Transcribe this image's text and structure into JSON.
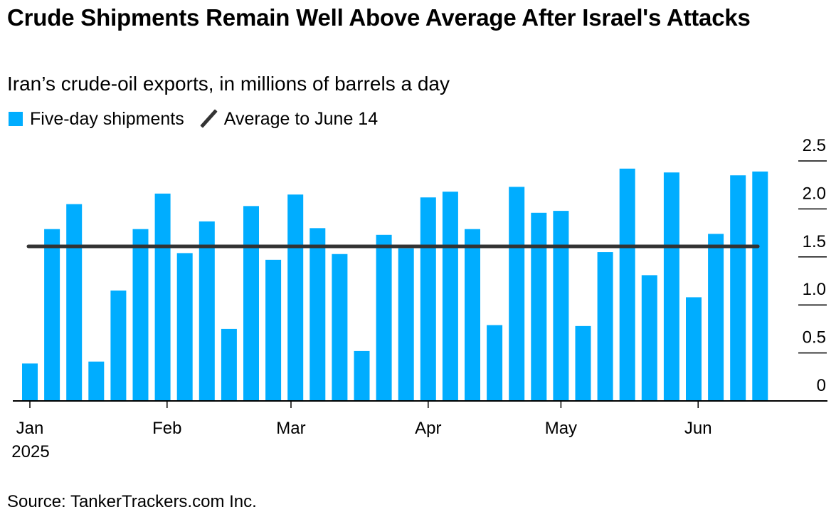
{
  "header": {
    "title": "Crude Shipments Remain Well Above Average After Israel's Attacks",
    "subtitle": "Iran’s crude-oil exports, in millions of barrels a day"
  },
  "legend": {
    "bars_label": "Five-day shipments",
    "line_label": "Average to June 14"
  },
  "footer": {
    "source": "Source: TankerTrackers.com Inc."
  },
  "colors": {
    "bars": "#00adff",
    "average_line": "#333333",
    "axis": "#000000"
  },
  "chart_data": {
    "type": "bar",
    "title": "Crude Shipments Remain Well Above Average After Israel's Attacks",
    "subtitle": "Iran’s crude-oil exports, in millions of barrels a day",
    "xlabel": "",
    "ylabel": "Millions of barrels a day",
    "ylim": [
      0,
      2.5
    ],
    "yticks": [
      0,
      0.5,
      1.0,
      1.5,
      2.0,
      2.5
    ],
    "ytick_labels": [
      "0",
      "0.5",
      "1.0",
      "1.5",
      "2.0",
      "2.5"
    ],
    "yaxis_side": "right",
    "grid": false,
    "legend_position": "top-left",
    "x_period_days": 5,
    "x_start": "2025-01-01",
    "x_end": "2025-06-30",
    "xticks": [
      {
        "date": "2025-01-01",
        "label": "Jan",
        "sublabel": "2025"
      },
      {
        "date": "2025-02-01",
        "label": "Feb",
        "sublabel": ""
      },
      {
        "date": "2025-03-01",
        "label": "Mar",
        "sublabel": ""
      },
      {
        "date": "2025-04-01",
        "label": "Apr",
        "sublabel": ""
      },
      {
        "date": "2025-05-01",
        "label": "May",
        "sublabel": ""
      },
      {
        "date": "2025-06-01",
        "label": "Jun",
        "sublabel": ""
      }
    ],
    "series": [
      {
        "name": "Five-day shipments",
        "type": "bar",
        "values": [
          0.39,
          1.79,
          2.05,
          0.41,
          1.15,
          1.79,
          2.16,
          1.54,
          1.87,
          0.75,
          2.03,
          1.47,
          2.15,
          1.8,
          1.53,
          0.52,
          1.73,
          1.59,
          2.12,
          2.18,
          1.79,
          0.79,
          2.23,
          1.96,
          1.98,
          0.78,
          1.55,
          2.42,
          1.31,
          2.38,
          1.08,
          1.74,
          2.35,
          2.39
        ]
      },
      {
        "name": "Average to June 14",
        "type": "line",
        "value": 1.61,
        "x_from": "2025-01-01",
        "x_to": "2025-06-14"
      }
    ]
  }
}
